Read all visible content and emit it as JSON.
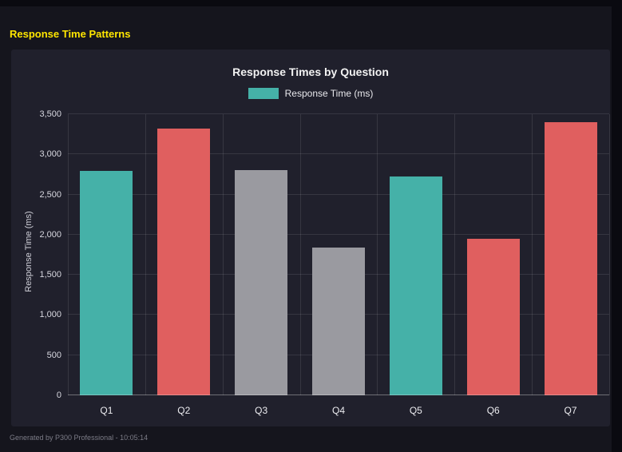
{
  "page": {
    "title": "Response Time Patterns",
    "footer": "Generated by P300 Professional - 10:05:14"
  },
  "chart_data": {
    "type": "bar",
    "title": "Response Times by Question",
    "legend": [
      {
        "label": "Response Time (ms)",
        "color": "#45b1a8"
      }
    ],
    "categories": [
      "Q1",
      "Q2",
      "Q3",
      "Q4",
      "Q5",
      "Q6",
      "Q7"
    ],
    "values": [
      2790,
      3320,
      2800,
      1840,
      2720,
      1950,
      3400
    ],
    "bar_colors": [
      "#45b1a8",
      "#e05f5f",
      "#9a9aa0",
      "#9a9aa0",
      "#45b1a8",
      "#e05f5f",
      "#e05f5f"
    ],
    "xlabel": "",
    "ylabel": "Response Time (ms)",
    "ylim": [
      0,
      3500
    ],
    "ytick_step": 500,
    "ytick_labels": [
      "0",
      "500",
      "1,000",
      "1,500",
      "2,000",
      "2,500",
      "3,000",
      "3,500"
    ],
    "grid": true,
    "legend_position": "top"
  }
}
